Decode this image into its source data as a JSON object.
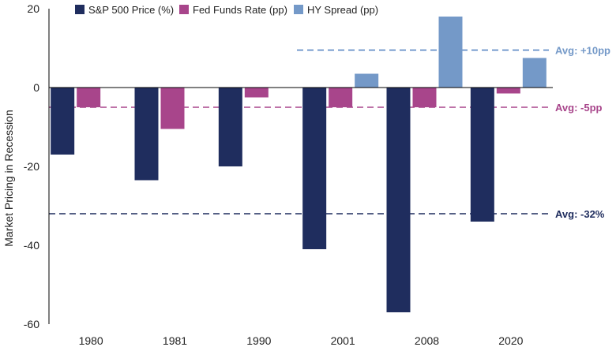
{
  "chart_data": {
    "type": "bar",
    "title": "",
    "xlabel": "",
    "ylabel": "Market Pricing in Recession",
    "ylim": [
      -60,
      20
    ],
    "yticks": [
      20,
      0,
      -20,
      -40,
      -60
    ],
    "grid": false,
    "legend_position": "top",
    "categories": [
      "1980",
      "1981",
      "1990",
      "2001",
      "2008",
      "2020"
    ],
    "series": [
      {
        "name": "S&P 500 Price (%)",
        "color": "#1f2d5e",
        "values": [
          -17,
          -23.5,
          -20,
          -41,
          -57,
          -34
        ]
      },
      {
        "name": "Fed Funds Rate (pp)",
        "color": "#a8458b",
        "values": [
          -5,
          -10.5,
          -2.5,
          -5,
          -5,
          -1.5
        ]
      },
      {
        "name": "HY Spread (pp)",
        "color": "#7499c8",
        "values": [
          null,
          null,
          null,
          3.5,
          18,
          7.5
        ]
      }
    ],
    "reference_lines": [
      {
        "label": "Avg: -32%",
        "value": -32,
        "color": "#1f2d5e",
        "text_color": "#1f2d5e",
        "from_category": 0
      },
      {
        "label": "Avg: -5pp",
        "value": -5,
        "color": "#a8458b",
        "text_color": "#a8458b",
        "from_category": 0
      },
      {
        "label": "Avg: +10pp",
        "value": 9.5,
        "color": "#4f7fbf",
        "text_color": "#7499c8",
        "from_category": 3
      }
    ]
  }
}
